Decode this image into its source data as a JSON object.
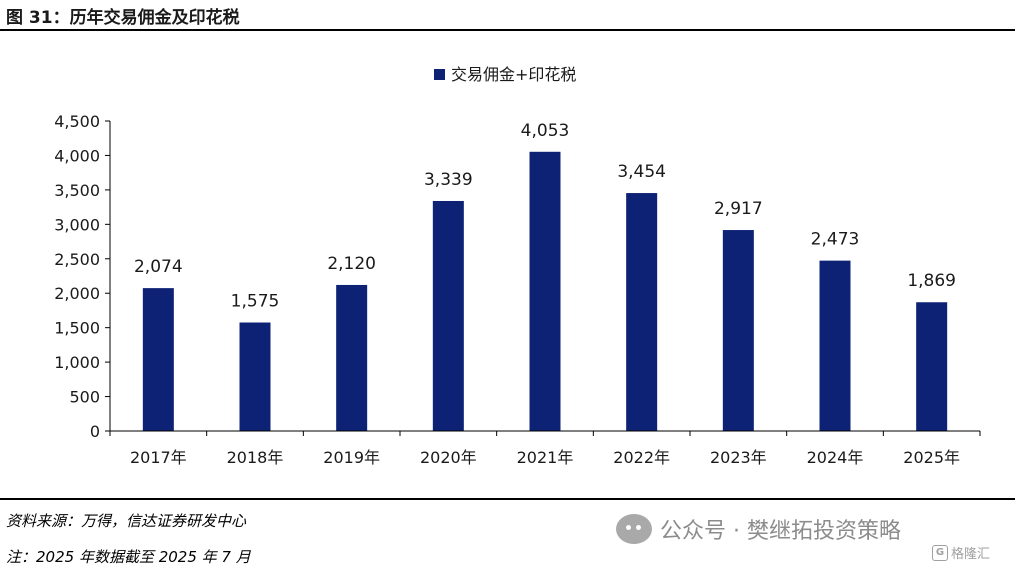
{
  "figure": {
    "title": "图 31：历年交易佣金及印花税",
    "source": "资料来源：万得，信达证券研发中心",
    "note": "注：2025 年数据截至 2025 年 7 月"
  },
  "watermark": {
    "text": "公众号 · 樊继拓投资策略",
    "icon": "wechat-icon"
  },
  "brand": {
    "text": "格隆汇",
    "icon": "G"
  },
  "colors": {
    "bar": "#0d2275",
    "axis": "#000000",
    "text": "#1a1a1a"
  },
  "chart_data": {
    "type": "bar",
    "categories": [
      "2017年",
      "2018年",
      "2019年",
      "2020年",
      "2021年",
      "2022年",
      "2023年",
      "2024年",
      "2025年"
    ],
    "series": [
      {
        "name": "交易佣金+印花税",
        "values": [
          2074,
          1575,
          2120,
          3339,
          4053,
          3454,
          2917,
          2473,
          1869
        ]
      }
    ],
    "data_labels": [
      "2,074",
      "1,575",
      "2,120",
      "3,339",
      "4,053",
      "3,454",
      "2,917",
      "2,473",
      "1,869"
    ],
    "yticks": [
      "0",
      "500",
      "1,000",
      "1,500",
      "2,000",
      "2,500",
      "3,000",
      "3,500",
      "4,000",
      "4,500"
    ],
    "ylim": [
      0,
      4500
    ],
    "grid": false,
    "legend_position": "top-center"
  }
}
